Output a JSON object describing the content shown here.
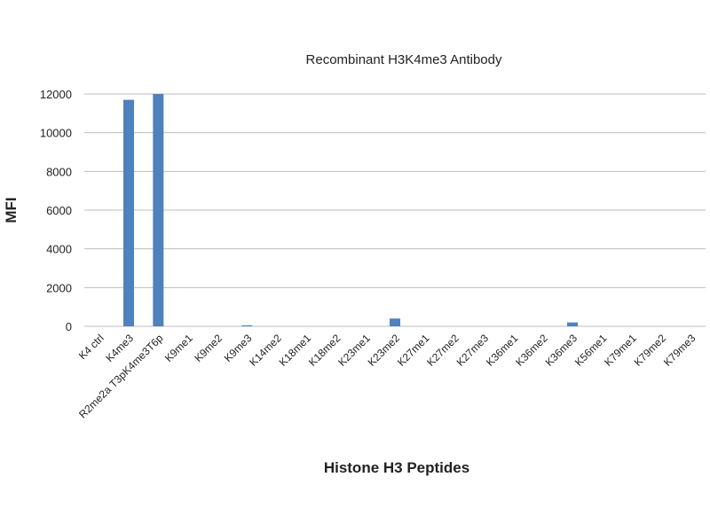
{
  "chart_data": {
    "type": "bar",
    "title": "Recombinant H3K4me3 Antibody",
    "x_label": "Histone H3 Peptides",
    "y_label": "MFI",
    "categories": [
      "K4 ctrl",
      "K4me3",
      "R2me2a T3pK4me3T6p",
      "K9me1",
      "K9me2",
      "K9me3",
      "K14me2",
      "K18me1",
      "K18me2",
      "K23me1",
      "K23me2",
      "K27me1",
      "K27me2",
      "K27me3",
      "K36me1",
      "K36me2",
      "K36me3",
      "K56me1",
      "K79me1",
      "K79me2",
      "K79me3"
    ],
    "values": [
      0,
      11700,
      12000,
      0,
      0,
      50,
      0,
      0,
      0,
      0,
      400,
      0,
      0,
      0,
      0,
      0,
      200,
      0,
      0,
      0,
      0
    ],
    "color": "#4f81bd",
    "ylim": [
      0,
      12000
    ],
    "yticks": [
      0,
      2000,
      4000,
      6000,
      8000,
      10000,
      12000
    ],
    "grid": true
  }
}
